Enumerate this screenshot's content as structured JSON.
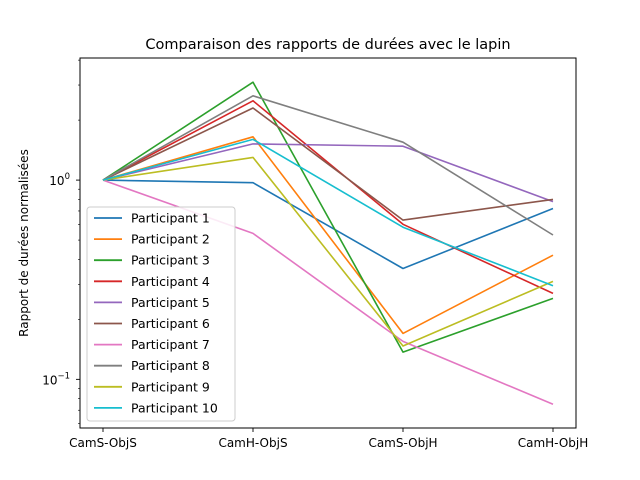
{
  "chart_data": {
    "type": "line",
    "title": "Comparaison des rapports de durées avec le lapin",
    "xlabel": "",
    "ylabel": "Rapport de durées normalisées",
    "yscale": "log",
    "ylim": [
      0.057,
      4.1
    ],
    "categories": [
      "CamS-ObjS",
      "CamH-ObjS",
      "CamS-ObjH",
      "CamH-ObjH"
    ],
    "y_ticks": [
      {
        "value": 0.1,
        "base": "10",
        "exp": "−1"
      },
      {
        "value": 1,
        "base": "10",
        "exp": "0"
      }
    ],
    "legend_position": "lower-left",
    "grid": false,
    "series": [
      {
        "name": "Participant 1",
        "color": "#1f77b4",
        "values": [
          1.0,
          0.97,
          0.36,
          0.72
        ]
      },
      {
        "name": "Participant 2",
        "color": "#ff7f0e",
        "values": [
          1.0,
          1.65,
          0.17,
          0.42
        ]
      },
      {
        "name": "Participant 3",
        "color": "#2ca02c",
        "values": [
          1.0,
          3.1,
          0.137,
          0.255
        ]
      },
      {
        "name": "Participant 4",
        "color": "#d62728",
        "values": [
          1.0,
          2.5,
          0.6,
          0.27
        ]
      },
      {
        "name": "Participant 5",
        "color": "#9467bd",
        "values": [
          1.0,
          1.52,
          1.48,
          0.78
        ]
      },
      {
        "name": "Participant 6",
        "color": "#8c564b",
        "values": [
          1.0,
          2.3,
          0.63,
          0.8
        ]
      },
      {
        "name": "Participant 7",
        "color": "#e377c2",
        "values": [
          1.0,
          0.54,
          0.155,
          0.075
        ]
      },
      {
        "name": "Participant 8",
        "color": "#7f7f7f",
        "values": [
          1.0,
          2.65,
          1.55,
          0.53
        ]
      },
      {
        "name": "Participant 9",
        "color": "#bcbd22",
        "values": [
          1.0,
          1.3,
          0.147,
          0.31
        ]
      },
      {
        "name": "Participant 10",
        "color": "#17becf",
        "values": [
          1.0,
          1.6,
          0.58,
          0.295
        ]
      }
    ]
  }
}
